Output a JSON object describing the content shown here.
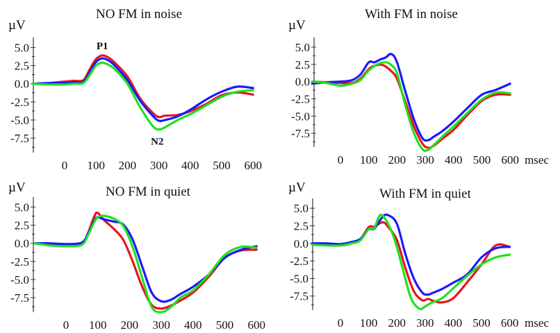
{
  "chart_data": [
    {
      "type": "line",
      "title": "NO FM in noise",
      "ylabel": "µV",
      "xlabel": "",
      "ylim": [
        -9.5,
        6
      ],
      "xlim": [
        -100,
        600
      ],
      "yticks": [
        "5.0",
        "2.5",
        "0.0",
        "-2.5",
        "-5.0",
        "-7.5"
      ],
      "xticks": [
        "0",
        "100",
        "200",
        "300",
        "400",
        "500",
        "600"
      ],
      "annotations": [
        {
          "text": "P1",
          "x": 120,
          "y": 3.8
        },
        {
          "text": "N2",
          "x": 295,
          "y": -6.3
        }
      ],
      "series": [
        {
          "color": "#e8141c",
          "x": [
            -100,
            -50,
            0,
            30,
            60,
            80,
            100,
            120,
            140,
            160,
            200,
            240,
            280,
            300,
            320,
            360,
            400,
            450,
            500,
            550,
            600
          ],
          "y": [
            0,
            0.1,
            0.3,
            0.4,
            0.5,
            2.0,
            3.4,
            3.9,
            3.6,
            2.9,
            1.0,
            -2.0,
            -4.0,
            -4.6,
            -4.4,
            -4.3,
            -3.8,
            -2.8,
            -1.6,
            -1.2,
            -1.5
          ]
        },
        {
          "color": "#1a1aff",
          "x": [
            -100,
            -50,
            0,
            30,
            60,
            80,
            100,
            120,
            140,
            160,
            200,
            240,
            280,
            300,
            320,
            360,
            400,
            450,
            500,
            550,
            600
          ],
          "y": [
            0,
            0.1,
            0.1,
            0.2,
            0.3,
            1.6,
            3.0,
            3.5,
            3.2,
            2.5,
            0.5,
            -2.3,
            -4.4,
            -5.1,
            -5.0,
            -4.5,
            -3.6,
            -2.2,
            -1.1,
            -0.4,
            -0.6
          ]
        },
        {
          "color": "#20e020",
          "x": [
            -100,
            -50,
            0,
            30,
            60,
            80,
            100,
            120,
            140,
            160,
            200,
            240,
            280,
            300,
            320,
            360,
            400,
            450,
            500,
            550,
            600
          ],
          "y": [
            0,
            -0.1,
            -0.1,
            0,
            0.1,
            1.2,
            2.5,
            2.9,
            2.6,
            2.0,
            0,
            -3.2,
            -5.8,
            -6.3,
            -6.0,
            -5.0,
            -4.2,
            -3.0,
            -1.8,
            -1.1,
            -0.9
          ]
        }
      ]
    },
    {
      "type": "line",
      "title": "With FM in noise",
      "ylabel": "µV",
      "xlabel": "msec",
      "ylim": [
        -9.5,
        6
      ],
      "xlim": [
        -100,
        600
      ],
      "yticks": [
        "5.0",
        "2.5",
        "0.0",
        "-2.5",
        "-5.0",
        "-7.5"
      ],
      "xticks": [
        "0",
        "100",
        "200",
        "300",
        "400",
        "500",
        "600"
      ],
      "series": [
        {
          "color": "#e8141c",
          "x": [
            -100,
            -50,
            0,
            40,
            70,
            100,
            120,
            150,
            180,
            200,
            230,
            260,
            290,
            310,
            330,
            360,
            400,
            450,
            500,
            550,
            600
          ],
          "y": [
            0,
            -0.1,
            -0.2,
            -0.2,
            0.4,
            1.8,
            2.3,
            2.4,
            1.5,
            0.4,
            -3.0,
            -6.5,
            -9.0,
            -9.6,
            -9.3,
            -8.3,
            -7.0,
            -4.8,
            -2.8,
            -1.9,
            -1.9
          ]
        },
        {
          "color": "#1a1aff",
          "x": [
            -100,
            -50,
            0,
            40,
            70,
            100,
            120,
            140,
            160,
            180,
            200,
            230,
            260,
            290,
            310,
            330,
            360,
            400,
            450,
            500,
            550,
            600
          ],
          "y": [
            -0.3,
            -0.1,
            0,
            0.2,
            1.0,
            2.8,
            2.8,
            3.2,
            3.5,
            4.0,
            2.8,
            -1.5,
            -5.5,
            -8.2,
            -8.5,
            -8.0,
            -7.2,
            -5.8,
            -3.8,
            -1.9,
            -1.2,
            -0.3
          ]
        },
        {
          "color": "#20e020",
          "x": [
            -100,
            -50,
            0,
            40,
            70,
            100,
            130,
            160,
            180,
            200,
            230,
            260,
            290,
            310,
            330,
            360,
            400,
            450,
            500,
            550,
            600
          ],
          "y": [
            0,
            -0.2,
            -0.6,
            -0.3,
            0.2,
            1.6,
            2.5,
            2.8,
            2.4,
            1.2,
            -3.5,
            -7.5,
            -9.8,
            -9.9,
            -9.2,
            -8.0,
            -6.5,
            -4.5,
            -2.6,
            -1.6,
            -1.7
          ]
        }
      ]
    },
    {
      "type": "line",
      "title": "NO FM in quiet",
      "ylabel": "µV",
      "xlabel": "",
      "ylim": [
        -9.5,
        6
      ],
      "xlim": [
        -100,
        600
      ],
      "yticks": [
        "5.0",
        "2.5",
        "0.0",
        "-2.5",
        "-5.0",
        "-7.5"
      ],
      "xticks": [
        "0",
        "100",
        "200",
        "300",
        "400",
        "500",
        "600"
      ],
      "series": [
        {
          "color": "#e8141c",
          "x": [
            -100,
            -50,
            0,
            50,
            70,
            90,
            100,
            120,
            150,
            180,
            210,
            240,
            270,
            300,
            330,
            360,
            400,
            450,
            500,
            550,
            600
          ],
          "y": [
            0,
            -0.2,
            -0.3,
            -0.1,
            1.5,
            3.8,
            4.2,
            3.2,
            2.0,
            0.5,
            -2.5,
            -6.0,
            -8.5,
            -9.0,
            -8.6,
            -7.9,
            -6.8,
            -4.6,
            -2.0,
            -1.0,
            -0.9
          ]
        },
        {
          "color": "#1a1aff",
          "x": [
            -100,
            -50,
            0,
            50,
            70,
            90,
            100,
            120,
            150,
            180,
            210,
            240,
            270,
            300,
            330,
            360,
            400,
            450,
            500,
            550,
            600
          ],
          "y": [
            0,
            0,
            -0.1,
            0.1,
            1.4,
            3.2,
            3.6,
            3.3,
            3.0,
            2.6,
            0.5,
            -3.2,
            -6.8,
            -8.0,
            -7.8,
            -7.0,
            -6.0,
            -4.3,
            -2.0,
            -0.9,
            -0.4
          ]
        },
        {
          "color": "#20e020",
          "x": [
            -100,
            -50,
            0,
            50,
            70,
            90,
            100,
            120,
            150,
            180,
            210,
            240,
            270,
            300,
            330,
            360,
            400,
            450,
            500,
            550,
            600
          ],
          "y": [
            0,
            -0.3,
            -0.4,
            -0.2,
            1.2,
            3.0,
            3.6,
            3.8,
            3.4,
            2.4,
            -0.5,
            -4.8,
            -8.8,
            -9.5,
            -8.8,
            -7.5,
            -6.5,
            -4.3,
            -1.6,
            -0.5,
            -0.6
          ]
        }
      ]
    },
    {
      "type": "line",
      "title": "With FM in quiet",
      "ylabel": "µV",
      "xlabel": "msec",
      "ylim": [
        -9.5,
        6
      ],
      "xlim": [
        -100,
        600
      ],
      "yticks": [
        "5.0",
        "2.5",
        "0.0",
        "-2.5",
        "-5.0",
        "-7.5"
      ],
      "xticks": [
        "0",
        "100",
        "200",
        "300",
        "400",
        "500",
        "600"
      ],
      "series": [
        {
          "color": "#e8141c",
          "x": [
            -100,
            -50,
            0,
            40,
            70,
            100,
            120,
            150,
            170,
            200,
            230,
            260,
            290,
            310,
            330,
            360,
            400,
            450,
            500,
            550,
            600
          ],
          "y": [
            0,
            -0.2,
            -0.3,
            0,
            0.5,
            2.3,
            2.4,
            3.0,
            2.3,
            0.5,
            -3.5,
            -6.8,
            -8.1,
            -7.9,
            -8.2,
            -8.4,
            -7.8,
            -5.5,
            -3.0,
            -0.3,
            -0.5
          ]
        },
        {
          "color": "#1a1aff",
          "x": [
            -100,
            -50,
            0,
            40,
            70,
            100,
            120,
            150,
            170,
            200,
            230,
            260,
            290,
            310,
            330,
            360,
            400,
            450,
            500,
            550,
            600
          ],
          "y": [
            0,
            0,
            -0.1,
            0.2,
            0.6,
            2.0,
            2.1,
            3.8,
            4.0,
            2.8,
            -1.5,
            -5.0,
            -7.0,
            -7.3,
            -7.0,
            -6.5,
            -5.6,
            -4.4,
            -2.0,
            -0.7,
            -0.5
          ]
        },
        {
          "color": "#20e020",
          "x": [
            -100,
            -50,
            0,
            40,
            70,
            100,
            120,
            140,
            160,
            190,
            220,
            250,
            280,
            300,
            320,
            360,
            400,
            450,
            500,
            550,
            600
          ],
          "y": [
            -0.2,
            -0.3,
            -0.3,
            0,
            0.4,
            2.0,
            2.2,
            4.0,
            3.4,
            0.8,
            -3.5,
            -7.8,
            -9.3,
            -9.0,
            -8.5,
            -7.8,
            -6.4,
            -4.6,
            -3.0,
            -2.0,
            -1.6
          ]
        }
      ]
    }
  ]
}
